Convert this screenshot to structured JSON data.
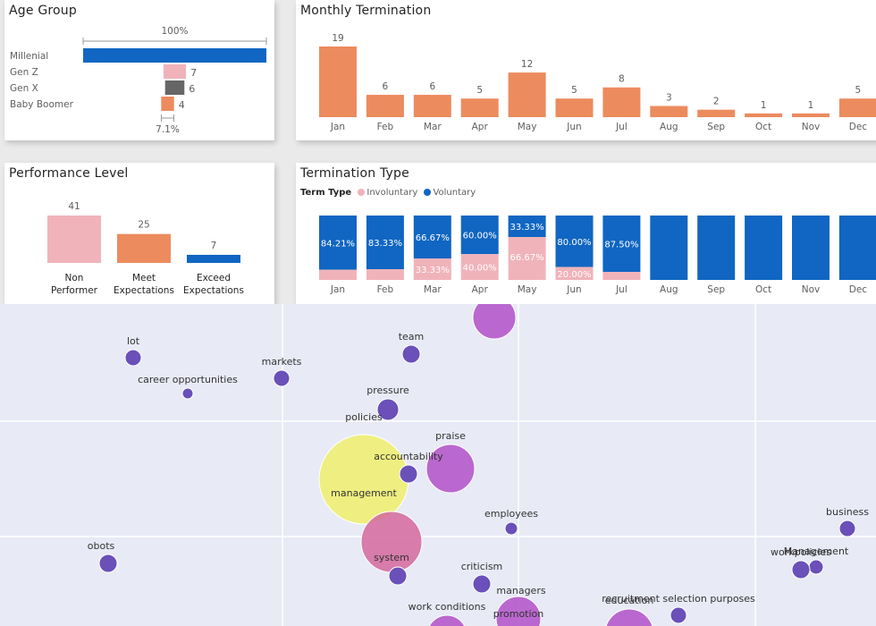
{
  "colors": {
    "orange": "#ec8b5e",
    "blue": "#1066c2",
    "pink": "#f0b3ba",
    "gray": "#666666",
    "purple": "#6a50b8",
    "magenta": "#b251c8",
    "yellow": "#eef06b",
    "rose": "#d4689e",
    "bubble_bg": "#e8eaf6"
  },
  "chart_data": [
    {
      "id": "age-group",
      "type": "bar",
      "orientation": "horizontal",
      "title": "Age Group",
      "categories": [
        "Millenial",
        "Gen Z",
        "Gen X",
        "Baby Boomer"
      ],
      "values": [
        57,
        7,
        6,
        4
      ],
      "data_labels": [
        "",
        "7",
        "6",
        "4"
      ],
      "bar_colors": [
        "#1066c2",
        "#f0b3ba",
        "#666666",
        "#ec8b5e"
      ],
      "top_annotation": "100%",
      "bottom_annotation": "7.1%"
    },
    {
      "id": "monthly-termination",
      "type": "bar",
      "title": "Monthly Termination",
      "categories": [
        "Jan",
        "Feb",
        "Mar",
        "Apr",
        "May",
        "Jun",
        "Jul",
        "Aug",
        "Sep",
        "Oct",
        "Nov",
        "Dec"
      ],
      "values": [
        19,
        6,
        6,
        5,
        12,
        5,
        8,
        3,
        2,
        1,
        1,
        5
      ],
      "ylim": [
        0,
        19
      ]
    },
    {
      "id": "performance-level",
      "type": "bar",
      "title": "Performance Level",
      "categories": [
        [
          "Non",
          "Performer"
        ],
        [
          "Meet",
          "Expectations"
        ],
        [
          "Exceed",
          "Expectations"
        ]
      ],
      "values": [
        41,
        25,
        7
      ],
      "bar_colors": [
        "#f0b3ba",
        "#ec8b5e",
        "#1066c2"
      ],
      "ylim": [
        0,
        41
      ]
    },
    {
      "id": "termination-type",
      "type": "bar",
      "stacked": "100%",
      "title": "Termination Type",
      "legend_title": "Term Type",
      "legend": [
        {
          "name": "Involuntary",
          "color": "#f0b3ba"
        },
        {
          "name": "Voluntary",
          "color": "#1066c2"
        }
      ],
      "categories": [
        "Jan",
        "Feb",
        "Mar",
        "Apr",
        "May",
        "Jun",
        "Jul",
        "Aug",
        "Sep",
        "Oct",
        "Nov",
        "Dec"
      ],
      "series": [
        {
          "name": "Voluntary",
          "values": [
            84.21,
            83.33,
            66.67,
            60.0,
            33.33,
            80.0,
            87.5,
            100,
            100,
            100,
            100,
            100
          ],
          "labels": [
            "84.21%",
            "83.33%",
            "66.67%",
            "60.00%",
            "33.33%",
            "80.00%",
            "87.50%",
            "",
            "",
            "",
            "",
            ""
          ]
        },
        {
          "name": "Involuntary",
          "values": [
            15.79,
            16.67,
            33.33,
            40.0,
            66.67,
            20.0,
            12.5,
            0,
            0,
            0,
            0,
            0
          ],
          "labels": [
            "",
            "",
            "33.33%",
            "40.00%",
            "66.67%",
            "20.00%",
            "",
            "",
            "",
            "",
            "",
            ""
          ]
        }
      ]
    },
    {
      "id": "word-bubbles",
      "type": "scatter",
      "grid": true,
      "x_range": [
        0,
        980
      ],
      "y_range": [
        0,
        360
      ],
      "points": [
        {
          "label": "",
          "x": 553,
          "y": 15,
          "size": 24,
          "color": "#b251c8",
          "label_side": "none"
        },
        {
          "label": "lot",
          "x": 149,
          "y": 60,
          "size": 9,
          "color": "#6a50b8",
          "label_side": "above"
        },
        {
          "label": "team",
          "x": 460,
          "y": 56,
          "size": 10,
          "color": "#6a50b8",
          "label_side": "above"
        },
        {
          "label": "markets",
          "x": 315,
          "y": 83,
          "size": 9,
          "color": "#6a50b8",
          "label_side": "above"
        },
        {
          "label": "career opportunities",
          "x": 210,
          "y": 100,
          "size": 6,
          "color": "#6a50b8",
          "label_side": "above"
        },
        {
          "label": "pressure",
          "x": 434,
          "y": 118,
          "size": 12,
          "color": "#6a50b8",
          "label_side": "above"
        },
        {
          "label": "policies",
          "x": 407,
          "y": 126,
          "size": 0,
          "color": "#6a50b8",
          "label_side": "none"
        },
        {
          "label": "praise",
          "x": 504,
          "y": 184,
          "size": 27,
          "color": "#b251c8",
          "label_side": "above"
        },
        {
          "label": "management",
          "x": 407,
          "y": 196,
          "size": 50,
          "color": "#eef06b",
          "label_side": "center"
        },
        {
          "label": "accountability",
          "x": 457,
          "y": 190,
          "size": 10,
          "color": "#6a50b8",
          "label_side": "above"
        },
        {
          "label": "employees",
          "x": 572,
          "y": 251,
          "size": 7,
          "color": "#6a50b8",
          "label_side": "above"
        },
        {
          "label": "business",
          "x": 948,
          "y": 251,
          "size": 9,
          "color": "#6a50b8",
          "label_side": "above"
        },
        {
          "label": "obots",
          "x": 121,
          "y": 290,
          "size": 10,
          "color": "#6a50b8",
          "label_side": "above-left"
        },
        {
          "label": "system",
          "x": 438,
          "y": 266,
          "size": 34,
          "color": "#d4689e",
          "label_side": "below-inside"
        },
        {
          "label": "",
          "x": 445,
          "y": 304,
          "size": 10,
          "color": "#6a50b8",
          "label_side": "none"
        },
        {
          "label": "criticism",
          "x": 539,
          "y": 313,
          "size": 10,
          "color": "#6a50b8",
          "label_side": "above"
        },
        {
          "label": "Management",
          "x": 913,
          "y": 294,
          "size": 8,
          "color": "#6a50b8",
          "label_side": "above"
        },
        {
          "label": "workpolicies",
          "x": 896,
          "y": 297,
          "size": 10,
          "color": "#6a50b8",
          "label_side": "above"
        },
        {
          "label": "managers",
          "x": 583,
          "y": 320,
          "size": 0,
          "color": "#6a50b8",
          "label_side": "none"
        },
        {
          "label": "work conditions",
          "x": 500,
          "y": 370,
          "size": 22,
          "color": "#b251c8",
          "label_side": "above"
        },
        {
          "label": "promotion",
          "x": 580,
          "y": 352,
          "size": 25,
          "color": "#b251c8",
          "label_side": "inside-top"
        },
        {
          "label": "education",
          "x": 704,
          "y": 368,
          "size": 27,
          "color": "#b251c8",
          "label_side": "above"
        },
        {
          "label": "recruitment selection purposes",
          "x": 759,
          "y": 348,
          "size": 9,
          "color": "#6a50b8",
          "label_side": "above"
        }
      ]
    }
  ]
}
